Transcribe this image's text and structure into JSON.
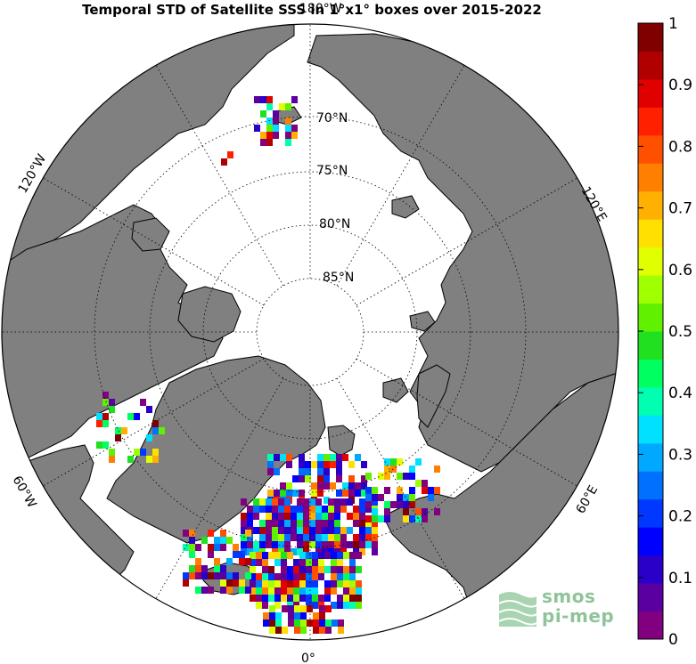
{
  "title": "Temporal STD of Satellite SSS in 1°x1° boxes over 2015-2022",
  "map": {
    "projection": "north-polar-stereographic",
    "latitude_labels": [
      "70°N",
      "75°N",
      "80°N",
      "85°N"
    ],
    "longitude_labels": {
      "top": "180°W",
      "upper_left": "120°W",
      "upper_right": "120°E",
      "lower_left": "60°W",
      "lower_right": "60°E",
      "bottom": "0°"
    },
    "land_color": "#808080",
    "ocean_color": "#ffffff",
    "grid_style": "dotted"
  },
  "colorbar": {
    "ticks": [
      "0",
      "0.1",
      "0.2",
      "0.3",
      "0.4",
      "0.5",
      "0.6",
      "0.7",
      "0.8",
      "0.9",
      "1"
    ],
    "min": 0,
    "max": 1,
    "colors": [
      "#800080",
      "#5a00a0",
      "#2a00c8",
      "#0000ff",
      "#0038ff",
      "#0070ff",
      "#00a8ff",
      "#00e0ff",
      "#00ffb0",
      "#00ff60",
      "#20e020",
      "#60f000",
      "#a0ff00",
      "#e0ff00",
      "#ffe000",
      "#ffb000",
      "#ff8000",
      "#ff5000",
      "#ff2000",
      "#e00000",
      "#b00000",
      "#800000"
    ]
  },
  "logo": {
    "line1": "smos",
    "line2": "pi-mep"
  }
}
